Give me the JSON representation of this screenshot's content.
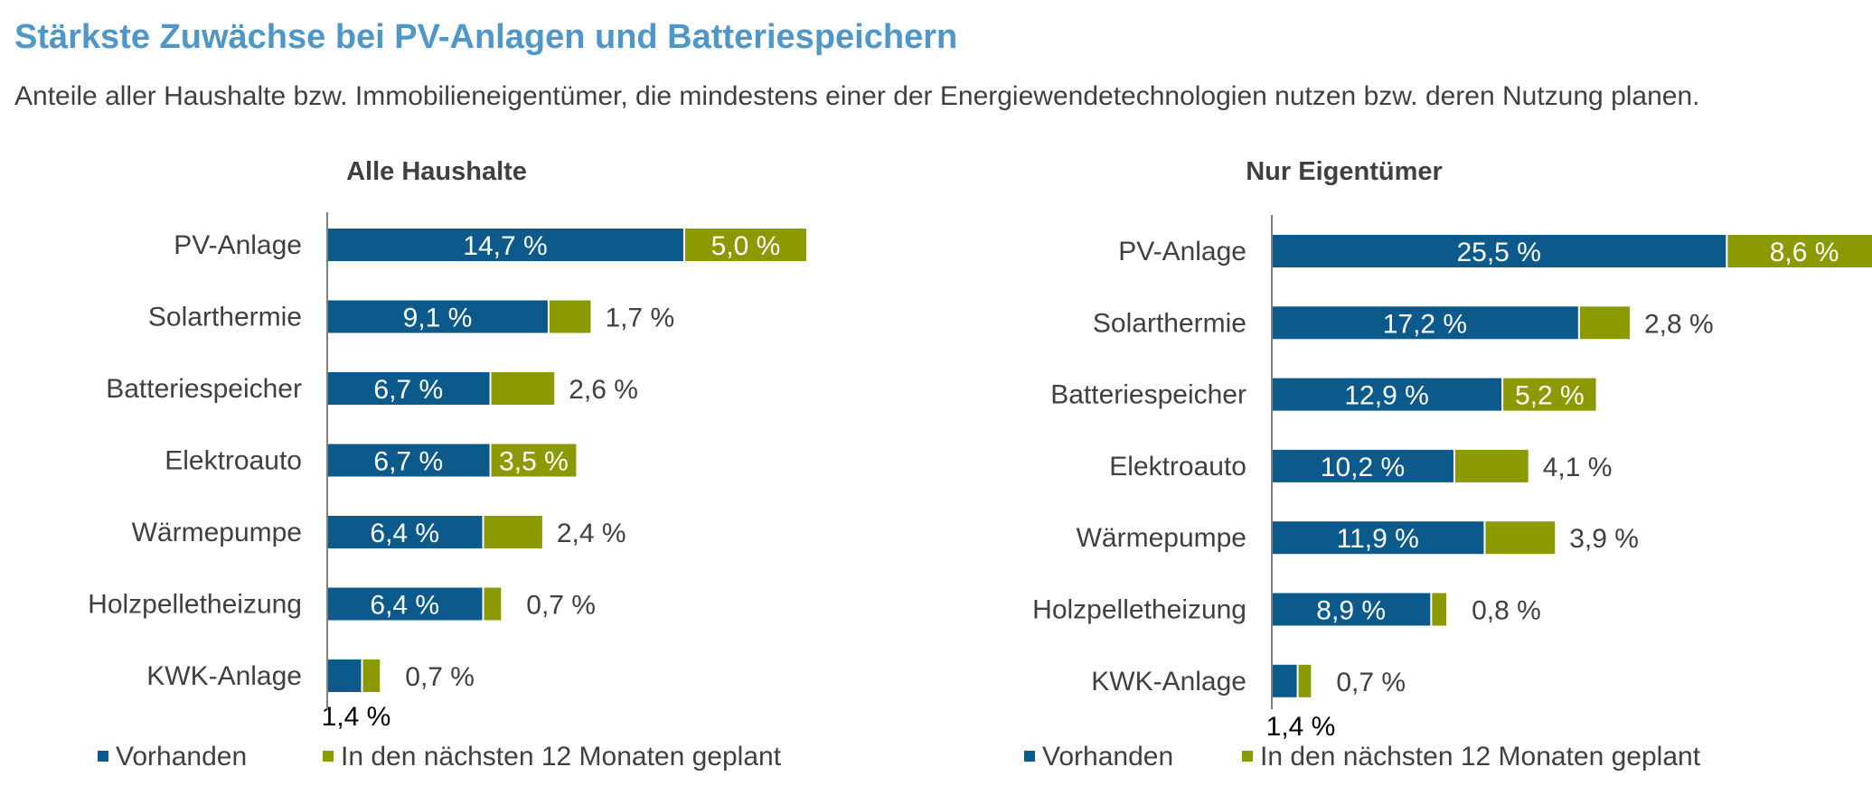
{
  "title": "Stärkste Zuwächse bei PV-Anlagen und Batteriespeichern",
  "subtitle": "Anteile aller Haushalte bzw. Immobilieneigentümer, die mindestens einer der Energiewendetechnologien nutzen bzw. deren Nutzung planen.",
  "colors": {
    "title": "#4f97c8",
    "vorhanden": "#0c5a8c",
    "geplant": "#8a9a00",
    "text": "#404040"
  },
  "chart_data": [
    {
      "type": "bar",
      "orientation": "horizontal",
      "stacked": true,
      "title": "Alle Haushalte",
      "categories": [
        "PV-Anlage",
        "Solarthermie",
        "Batteriespeicher",
        "Elektroauto",
        "Wärmepumpe",
        "Holzpelletheizung",
        "KWK-Anlage"
      ],
      "series": [
        {
          "name": "Vorhanden",
          "values": [
            14.7,
            9.1,
            6.7,
            6.7,
            6.4,
            6.4,
            1.4
          ],
          "labels": [
            "14,7 %",
            "9,1 %",
            "6,7 %",
            "6,7 %",
            "6,4 %",
            "6,4 %",
            "1,4 %"
          ]
        },
        {
          "name": "In den nächsten 12 Monaten geplant",
          "values": [
            5.0,
            1.7,
            2.6,
            3.5,
            2.4,
            0.7,
            0.7
          ],
          "labels": [
            "5,0 %",
            "1,7 %",
            "2,6 %",
            "3,5 %",
            "2,4 %",
            "0,7 %",
            "0,7 %"
          ]
        }
      ],
      "legend": "bottom"
    },
    {
      "type": "bar",
      "orientation": "horizontal",
      "stacked": true,
      "title": "Nur Eigentümer",
      "categories": [
        "PV-Anlage",
        "Solarthermie",
        "Batteriespeicher",
        "Elektroauto",
        "Wärmepumpe",
        "Holzpelletheizung",
        "KWK-Anlage"
      ],
      "series": [
        {
          "name": "Vorhanden",
          "values": [
            25.5,
            17.2,
            12.9,
            10.2,
            11.9,
            8.9,
            1.4
          ],
          "labels": [
            "25,5 %",
            "17,2 %",
            "12,9 %",
            "10,2 %",
            "11,9 %",
            "8,9 %",
            "1,4 %"
          ]
        },
        {
          "name": "In den nächsten 12 Monaten geplant",
          "values": [
            8.6,
            2.8,
            5.2,
            4.1,
            3.9,
            0.8,
            0.7
          ],
          "labels": [
            "8,6 %",
            "2,8 %",
            "5,2 %",
            "4,1 %",
            "3,9 %",
            "0,8 %",
            "0,7 %"
          ]
        }
      ],
      "legend": "bottom"
    }
  ]
}
